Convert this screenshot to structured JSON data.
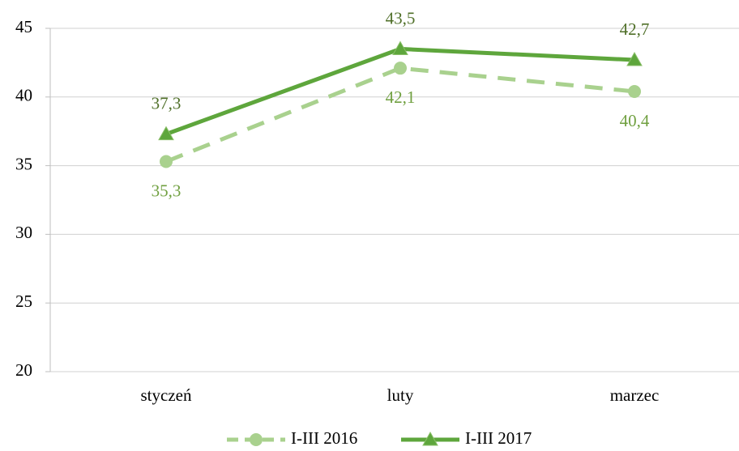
{
  "chart_data": {
    "type": "line",
    "categories": [
      "styczeń",
      "luty",
      "marzec"
    ],
    "series": [
      {
        "name": "I-III 2016",
        "color": "#a9d18e",
        "dash": true,
        "marker": "circle",
        "values": [
          35.3,
          42.1,
          40.4
        ],
        "value_labels": [
          "35,3",
          "42,1",
          "40,4"
        ],
        "label_color": "#70a040"
      },
      {
        "name": "I-III 2017",
        "color": "#5ea63c",
        "dash": false,
        "marker": "triangle",
        "values": [
          37.3,
          43.5,
          42.7
        ],
        "value_labels": [
          "37,3",
          "43,5",
          "42,7"
        ],
        "label_color": "#4f6f28"
      }
    ],
    "ylim": [
      20,
      45
    ],
    "yticks": [
      20,
      25,
      30,
      35,
      40,
      45
    ],
    "grid": true,
    "legend": "bottom"
  }
}
